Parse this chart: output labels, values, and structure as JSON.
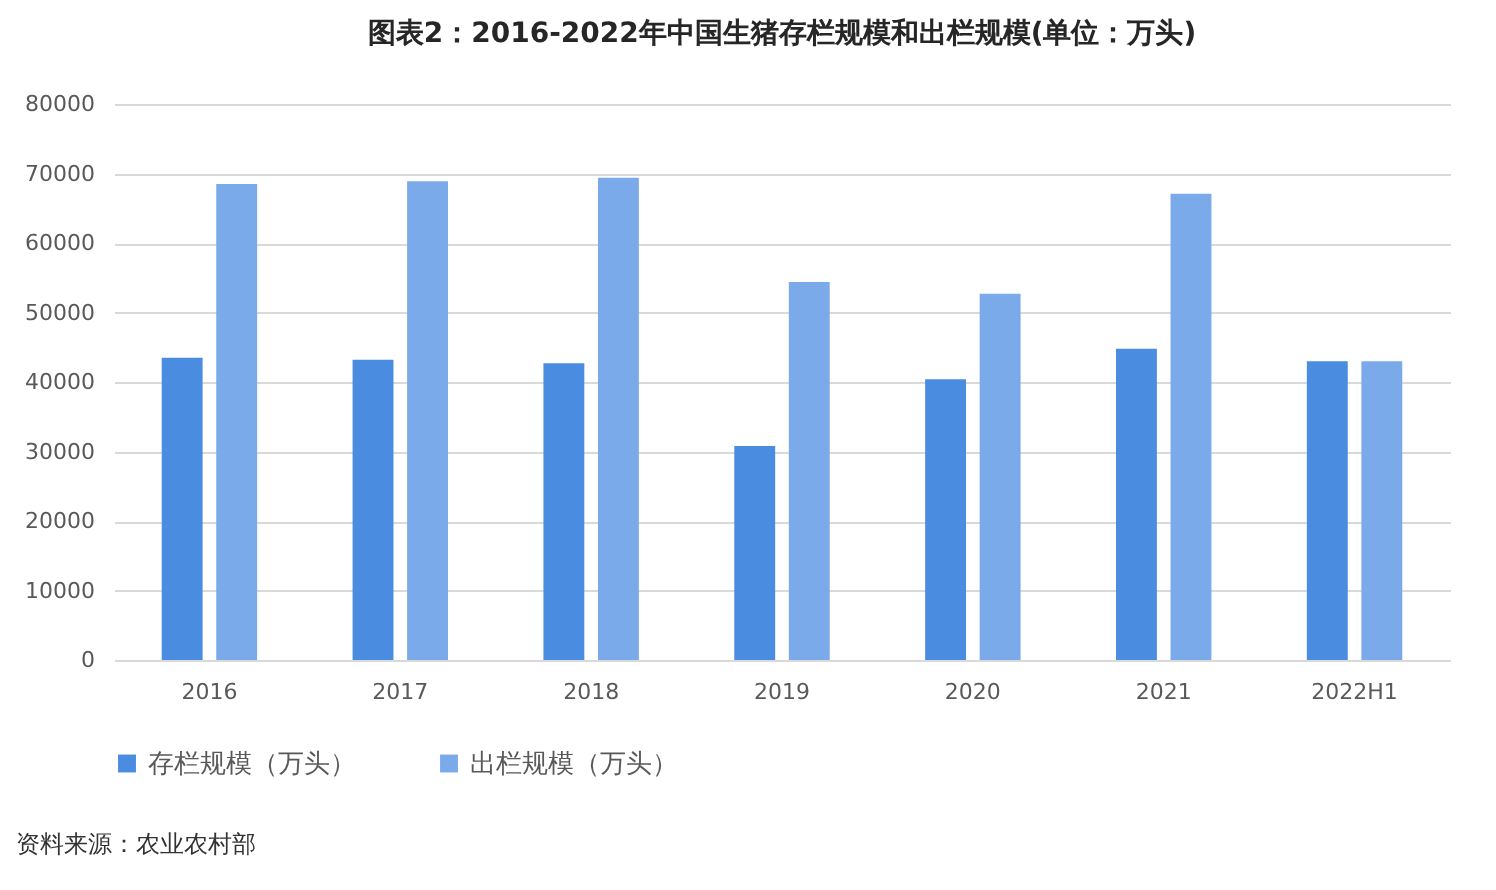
{
  "chart_data": {
    "type": "bar",
    "title": "图表2：2016-2022年中国生猪存栏规模和出栏规模(单位：万头)",
    "categories": [
      "2016",
      "2017",
      "2018",
      "2019",
      "2020",
      "2021",
      "2022H1"
    ],
    "series": [
      {
        "name": "存栏规模（万头）",
        "color": "#4a8ce0",
        "values": [
          43500,
          43200,
          42700,
          30800,
          40400,
          44800,
          43000
        ]
      },
      {
        "name": "出栏规模（万头）",
        "color": "#7aaaea",
        "values": [
          68500,
          68900,
          69400,
          54400,
          52700,
          67100,
          43000
        ]
      }
    ],
    "ylim": [
      0,
      80000
    ],
    "yticks": [
      0,
      10000,
      20000,
      30000,
      40000,
      50000,
      60000,
      70000,
      80000
    ],
    "grid": "y",
    "legend": "bottom",
    "annotations": [
      "资料来源：农业农村部"
    ]
  }
}
